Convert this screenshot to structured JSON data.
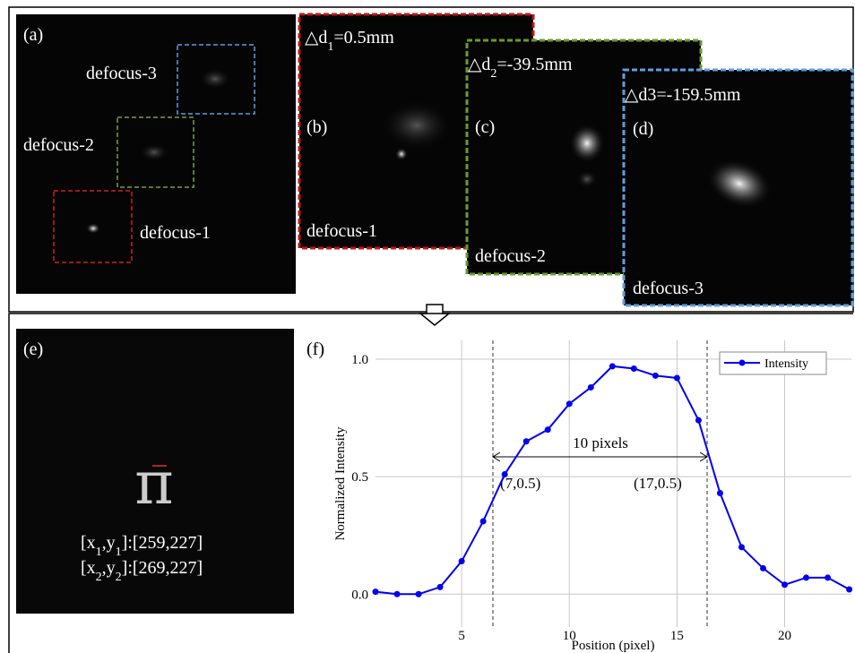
{
  "panels": {
    "a": {
      "label": "(a)",
      "annotations": [
        "defocus-3",
        "defocus-2",
        "defocus-1"
      ]
    },
    "b": {
      "label": "(b)",
      "caption": "defocus-1",
      "defocus": [
        "△d",
        "1",
        "=0.5mm"
      ]
    },
    "c": {
      "label": "(c)",
      "caption": "defocus-2",
      "defocus": [
        "△d",
        "2",
        "=-39.5mm"
      ]
    },
    "d": {
      "label": "(d)",
      "caption": "defocus-3",
      "defocus": [
        "△d3=-159.5mm"
      ]
    },
    "e": {
      "label": "(e)",
      "coordinates": [
        [
          "[x",
          "1",
          ",y",
          "1",
          "]:[259,227]"
        ],
        [
          "[x",
          "2",
          ",y",
          "2",
          "]:[269,227]"
        ]
      ]
    }
  },
  "chart_data": {
    "type": "line",
    "panel_label": "(f)",
    "x_label": "Position (pixel)",
    "y_label": "Normalized Intensity",
    "x": [
      1,
      2,
      3,
      4,
      5,
      6,
      7,
      8,
      9,
      10,
      11,
      12,
      13,
      14,
      15,
      16,
      17,
      18,
      19,
      20,
      21,
      22,
      23
    ],
    "series": [
      {
        "name": "Intensity",
        "color": "#0000ee",
        "values": [
          0.01,
          0.0,
          0.0,
          0.03,
          0.14,
          0.31,
          0.51,
          0.65,
          0.7,
          0.81,
          0.88,
          0.97,
          0.96,
          0.93,
          0.92,
          0.74,
          0.43,
          0.2,
          0.11,
          0.04,
          0.07,
          0.07,
          0.02
        ]
      }
    ],
    "xlim": [
      1,
      23.1
    ],
    "ylim": [
      -0.14,
      1.08
    ],
    "xticks": [
      5,
      10,
      15,
      20
    ],
    "yticks": [
      {
        "value": 0,
        "label": "0.0"
      },
      0.5,
      {
        "value": 1,
        "label": "1.0"
      }
    ],
    "grid": true,
    "legend": "upper right",
    "annotations": [
      "10 pixels",
      "(7,0.5)",
      "(17,0.5)"
    ]
  }
}
